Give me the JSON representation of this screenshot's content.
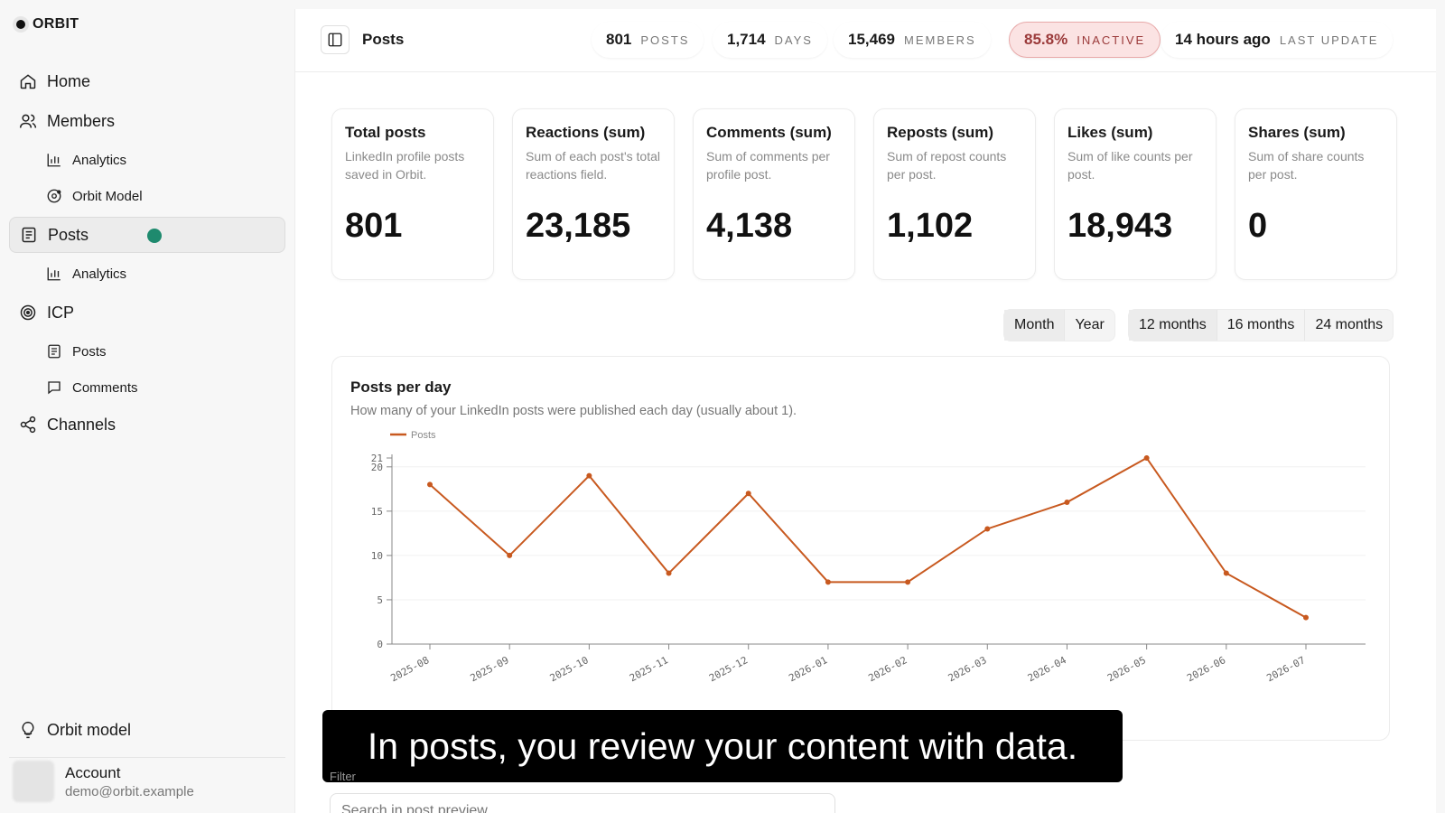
{
  "brand": "ORBIT",
  "sidebar": {
    "items": [
      {
        "label": "Home",
        "icon": "home-icon"
      },
      {
        "label": "Members",
        "icon": "users-icon"
      },
      {
        "label": "Analytics",
        "icon": "bar-chart-icon"
      },
      {
        "label": "Orbit Model",
        "icon": "orbit-icon"
      },
      {
        "label": "Posts",
        "icon": "document-icon"
      },
      {
        "label": "Analytics",
        "icon": "bar-chart-icon"
      },
      {
        "label": "ICP",
        "icon": "target-icon"
      },
      {
        "label": "Posts",
        "icon": "document-icon"
      },
      {
        "label": "Comments",
        "icon": "comment-icon"
      },
      {
        "label": "Channels",
        "icon": "share-icon"
      }
    ],
    "footer_item": {
      "label": "Orbit model",
      "icon": "lightbulb-icon"
    },
    "account": {
      "name": "Account",
      "email": "demo@orbit.example"
    }
  },
  "header": {
    "title": "Posts",
    "stats": [
      {
        "value": "801",
        "label": "POSTS"
      },
      {
        "value": "1,714",
        "label": "DAYS"
      },
      {
        "value": "15,469",
        "label": "MEMBERS"
      },
      {
        "value": "85.8%",
        "label": "INACTIVE"
      },
      {
        "value": "14 hours ago",
        "label": "LAST UPDATE"
      }
    ]
  },
  "cards": [
    {
      "title": "Total posts",
      "desc": "LinkedIn profile posts saved in Orbit.",
      "value": "801"
    },
    {
      "title": "Reactions (sum)",
      "desc": "Sum of each post's total reactions field.",
      "value": "23,185"
    },
    {
      "title": "Comments (sum)",
      "desc": "Sum of comments per profile post.",
      "value": "4,138"
    },
    {
      "title": "Reposts (sum)",
      "desc": "Sum of repost counts per post.",
      "value": "1,102"
    },
    {
      "title": "Likes (sum)",
      "desc": "Sum of like counts per post.",
      "value": "18,943"
    },
    {
      "title": "Shares (sum)",
      "desc": "Sum of share counts per post.",
      "value": "0"
    }
  ],
  "granularity": [
    "Month",
    "Year"
  ],
  "ranges": [
    "12 months",
    "16 months",
    "24 months"
  ],
  "chart": {
    "title": "Posts per day",
    "subtitle": "How many of your LinkedIn posts were published each day (usually about 1)."
  },
  "chart_data": {
    "type": "line",
    "x": [
      "2025-08",
      "2025-09",
      "2025-10",
      "2025-11",
      "2025-12",
      "2026-01",
      "2026-02",
      "2026-03",
      "2026-04",
      "2026-05",
      "2026-06",
      "2026-07"
    ],
    "series": [
      {
        "name": "Posts",
        "values": [
          18,
          10,
          19,
          8,
          17,
          7,
          7,
          13,
          16,
          21,
          8,
          3
        ]
      }
    ],
    "yticks": [
      0,
      5,
      10,
      15,
      20,
      21
    ],
    "ylim": [
      0,
      21
    ],
    "legend": "top-left",
    "grid": true,
    "color": "#c8591f"
  },
  "caption": "In posts, you review your content with data.",
  "filter": {
    "label": "Filter",
    "placeholder": "Search in post preview..."
  }
}
